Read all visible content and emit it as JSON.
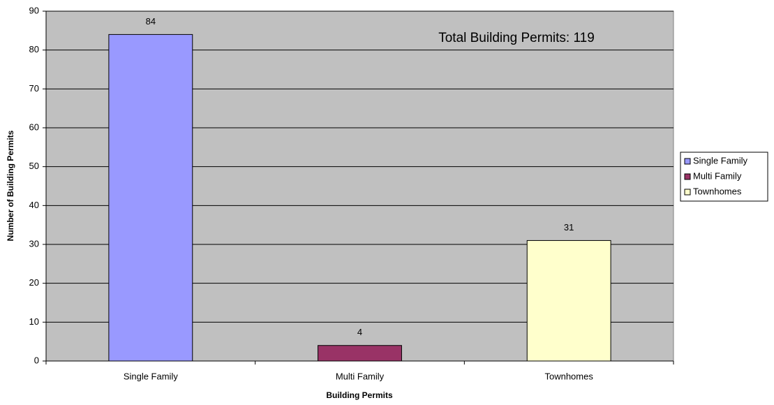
{
  "chart_data": {
    "type": "bar",
    "x_label": "Building Permits",
    "y_label": "Number of Building Permits",
    "annotation": "Total Building Permits: 119",
    "categories": [
      "Single Family",
      "Multi Family",
      "Townhomes"
    ],
    "values": [
      84,
      4,
      31
    ],
    "colors": [
      "#9999ff",
      "#993366",
      "#ffffcc"
    ],
    "ylim": [
      0,
      90
    ],
    "yticks": [
      0,
      10,
      20,
      30,
      40,
      50,
      60,
      70,
      80,
      90
    ],
    "grid": true,
    "legend": "right"
  }
}
